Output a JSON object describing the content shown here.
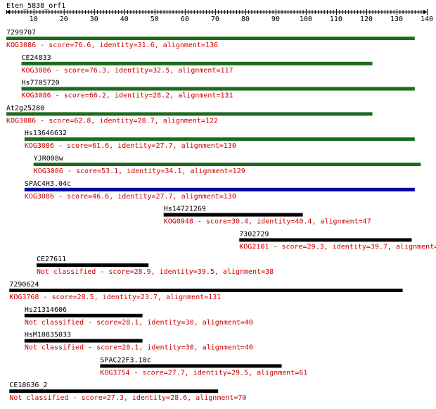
{
  "query_name": "Eten_5838_orf1",
  "ruler": {
    "min": 1,
    "max": 140,
    "ticks": [
      10,
      20,
      30,
      40,
      50,
      60,
      70,
      80,
      90,
      100,
      110,
      120,
      130,
      140
    ]
  },
  "colors": {
    "green": "#1e6b1e",
    "blue": "#0000aa",
    "black": "#000000",
    "red": "#cc0000"
  },
  "hits": [
    {
      "name": "7299707",
      "start": 1,
      "end": 136,
      "color": "green",
      "desc": "KOG3086 - score=76.6, identity=31.6, alignment=136"
    },
    {
      "name": "CE24833",
      "start": 6,
      "end": 122,
      "color": "green",
      "desc": "KOG3086 - score=76.3, identity=32.5, alignment=117"
    },
    {
      "name": "Hs7705720",
      "start": 6,
      "end": 136,
      "color": "green",
      "desc": "KOG3086 - score=66.2, identity=28.2, alignment=131"
    },
    {
      "name": "At2g25280",
      "start": 1,
      "end": 122,
      "color": "green",
      "desc": "KOG3086 - score=62.8, identity=28.7, alignment=122"
    },
    {
      "name": "Hs13646632",
      "start": 7,
      "end": 136,
      "color": "green",
      "desc": "KOG3086 - score=61.6, identity=27.7, alignment=130"
    },
    {
      "name": "YJR008w",
      "start": 10,
      "end": 138,
      "color": "green",
      "desc": "KOG3086 - score=53.1, identity=34.1, alignment=129"
    },
    {
      "name": "SPAC4H3.04c",
      "start": 7,
      "end": 136,
      "color": "blue",
      "desc": "KOG3086 - score=46.6, identity=27.7, alignment=130"
    },
    {
      "name": "Hs14721269",
      "start": 53,
      "end": 99,
      "color": "black",
      "desc": "KOG0948 - score=30.4, identity=40.4, alignment=47"
    },
    {
      "name": "7302729",
      "start": 78,
      "end": 135,
      "color": "black",
      "desc": "KOG2101 - score=29.3, identity=39.7, alignment="
    },
    {
      "name": "CE27611",
      "start": 11,
      "end": 48,
      "color": "black",
      "desc": "Not classified - score=28.9, identity=39.5, alignment=38"
    },
    {
      "name": "7290624",
      "start": 2,
      "end": 132,
      "color": "black",
      "desc": "KOG3768 - score=28.5, identity=23.7, alignment=131"
    },
    {
      "name": "Hs21314606",
      "start": 7,
      "end": 46,
      "color": "black",
      "desc": "Not classified - score=28.1, identity=30, alignment=40"
    },
    {
      "name": "HsM10835033",
      "start": 7,
      "end": 46,
      "color": "black",
      "desc": "Not classified - score=28.1, identity=30, alignment=40"
    },
    {
      "name": "SPAC22F3.10c",
      "start": 32,
      "end": 92,
      "color": "black",
      "desc": "KOG3754 - score=27.7, identity=29.5, alignment=61"
    },
    {
      "name": "CE18636_2",
      "start": 2,
      "end": 71,
      "color": "black",
      "desc": "Not classified - score=27.3, identity=28.6, alignment=70"
    }
  ]
}
